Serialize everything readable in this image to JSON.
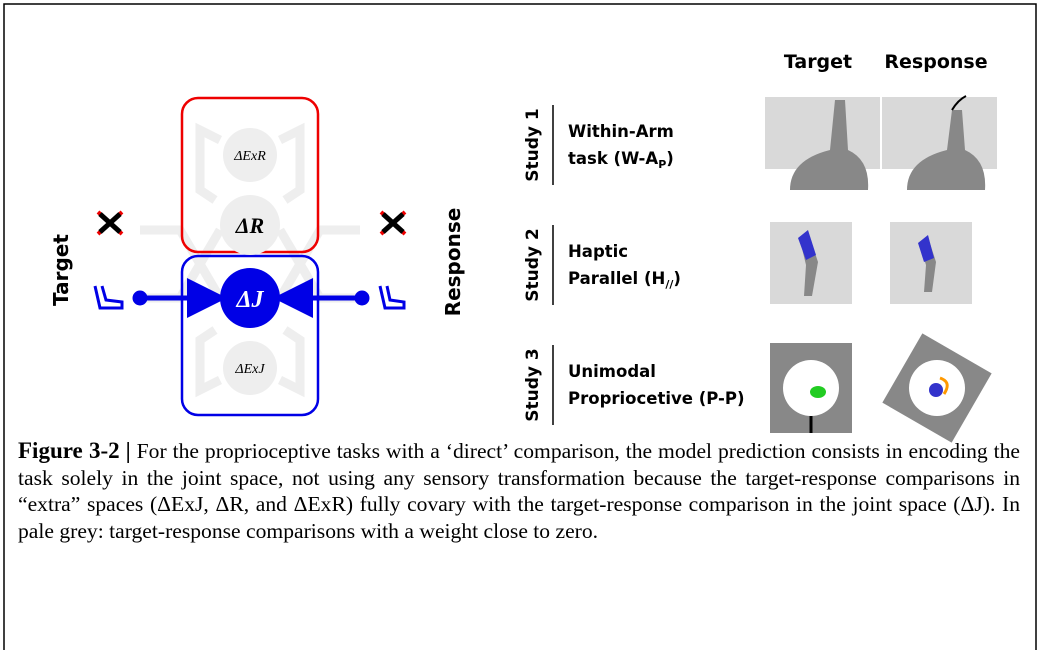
{
  "diagram": {
    "left_label": "Target",
    "right_label": "Response",
    "nodes": [
      "ΔExR",
      "ΔR",
      "ΔJ",
      "ΔExJ"
    ],
    "columns": [
      "Target",
      "Response"
    ],
    "studies": [
      {
        "label": "Study 1",
        "lines": [
          "Within-Arm",
          "task (W-A"
        ],
        "sub": "P",
        "tail": ")"
      },
      {
        "label": "Study 2",
        "lines": [
          "Haptic",
          "Parallel (H"
        ],
        "sub": "//",
        "tail": ")"
      },
      {
        "label": "Study 3",
        "lines": [
          "Unimodal",
          "Propriocetive (P-P)"
        ],
        "sub": "",
        "tail": ""
      }
    ]
  },
  "caption": {
    "label": "Figure 3-2",
    "separator": "|",
    "text": "For the proprioceptive tasks with a ‘direct’ comparison, the model prediction consists in encoding the task solely in the joint space, not using any sensory transformation because the target-response comparisons in “extra” spaces (ΔExJ, ΔR, and ΔExR) fully covary with the target-response comparison in the joint space (ΔJ). In pale grey: target-response comparisons with a weight close to zero."
  }
}
